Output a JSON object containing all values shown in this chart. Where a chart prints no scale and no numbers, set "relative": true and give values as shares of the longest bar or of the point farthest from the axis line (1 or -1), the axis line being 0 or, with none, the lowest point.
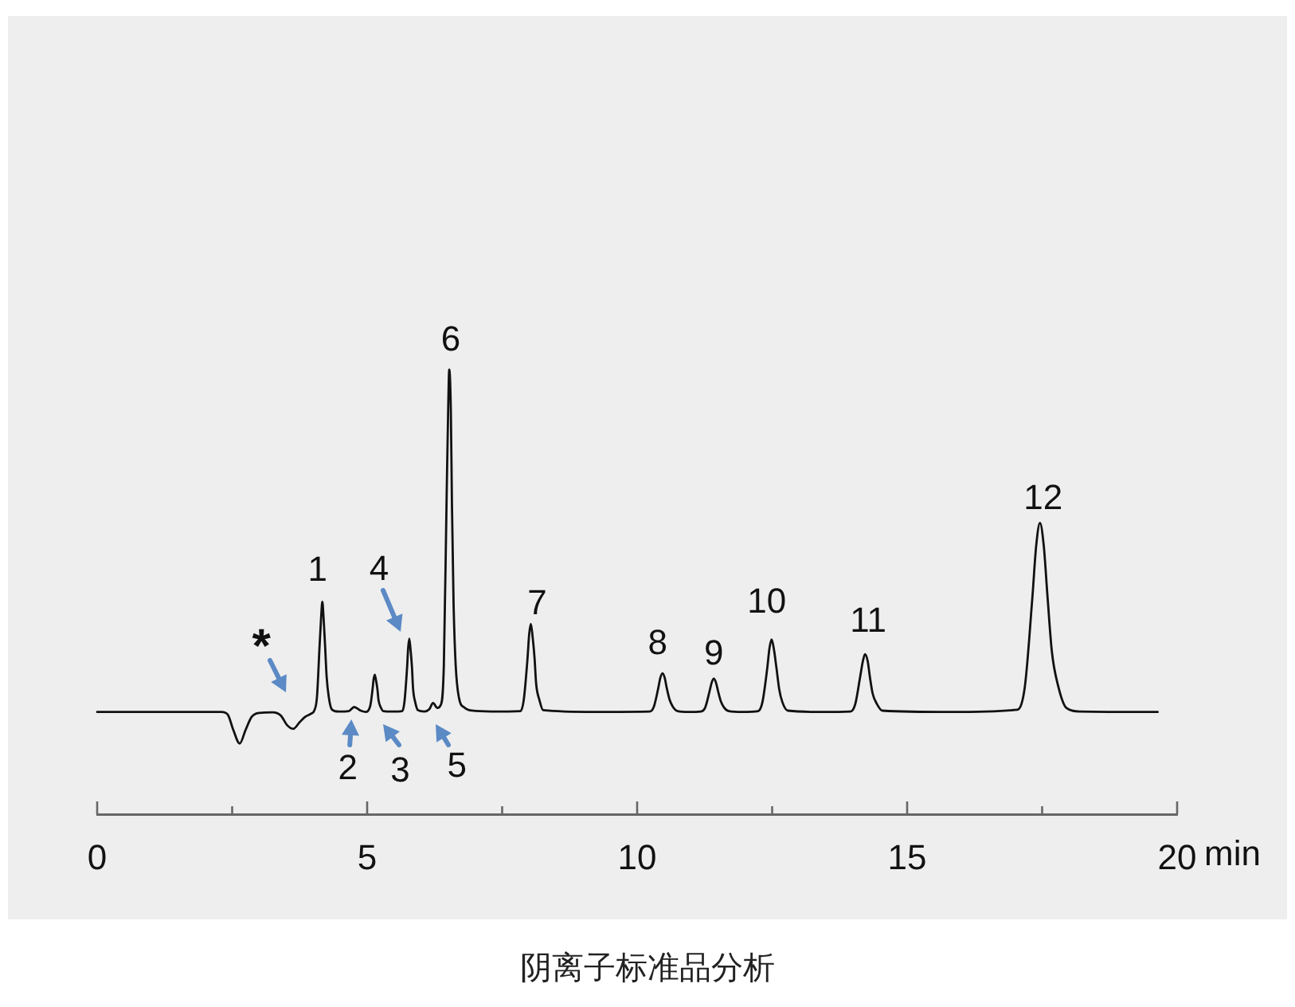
{
  "chart_data": {
    "type": "line",
    "title": "阴离子标准品分析",
    "xlabel": "min",
    "relative": true,
    "color": "#111111",
    "x": [
      0,
      2.3,
      2.42,
      2.52,
      2.64,
      2.75,
      2.86,
      3.0,
      3.25,
      3.4,
      3.52,
      3.63,
      3.75,
      3.85,
      3.96,
      4.02,
      4.07,
      4.12,
      4.15,
      4.17,
      4.19,
      4.22,
      4.25,
      4.29,
      4.35,
      4.47,
      4.66,
      4.76,
      4.88,
      4.98,
      5.02,
      5.06,
      5.1,
      5.12,
      5.14,
      5.16,
      5.19,
      5.21,
      5.25,
      5.3,
      5.47,
      5.65,
      5.69,
      5.74,
      5.76,
      5.78,
      5.8,
      5.83,
      5.85,
      5.89,
      5.94,
      6.06,
      6.15,
      6.22,
      6.3,
      6.36,
      6.42,
      6.47,
      6.5,
      6.52,
      6.55,
      6.57,
      6.6,
      6.64,
      6.7,
      6.8,
      6.94,
      7.3,
      7.84,
      7.9,
      7.97,
      8.0,
      8.03,
      8.06,
      8.1,
      8.13,
      8.19,
      8.26,
      9.2,
      10.23,
      10.31,
      10.39,
      10.43,
      10.47,
      10.51,
      10.55,
      10.6,
      10.66,
      10.75,
      10.95,
      11.18,
      11.26,
      11.34,
      11.38,
      11.42,
      11.46,
      11.5,
      11.55,
      11.61,
      11.7,
      11.95,
      12.24,
      12.32,
      12.41,
      12.45,
      12.49,
      12.53,
      12.58,
      12.63,
      12.69,
      12.79,
      13.4,
      13.95,
      14.04,
      14.13,
      14.18,
      14.22,
      14.27,
      14.31,
      14.36,
      14.44,
      14.54,
      15.8,
      17.04,
      17.18,
      17.32,
      17.39,
      17.46,
      17.53,
      17.6,
      17.68,
      17.8,
      17.95,
      18.2,
      19.64
    ],
    "values": [
      0.23,
      0.23,
      0.224,
      0.19,
      0.159,
      0.19,
      0.219,
      0.228,
      0.229,
      0.222,
      0.2,
      0.192,
      0.207,
      0.219,
      0.226,
      0.233,
      0.263,
      0.381,
      0.448,
      0.478,
      0.448,
      0.381,
      0.309,
      0.263,
      0.235,
      0.231,
      0.232,
      0.241,
      0.233,
      0.23,
      0.233,
      0.245,
      0.281,
      0.304,
      0.314,
      0.304,
      0.281,
      0.257,
      0.241,
      0.232,
      0.231,
      0.232,
      0.252,
      0.331,
      0.375,
      0.395,
      0.375,
      0.331,
      0.283,
      0.252,
      0.234,
      0.231,
      0.236,
      0.25,
      0.239,
      0.245,
      0.334,
      0.7,
      0.908,
      1,
      0.908,
      0.7,
      0.476,
      0.334,
      0.262,
      0.24,
      0.233,
      0.231,
      0.232,
      0.257,
      0.351,
      0.404,
      0.428,
      0.404,
      0.351,
      0.293,
      0.257,
      0.234,
      0.23,
      0.231,
      0.242,
      0.283,
      0.307,
      0.317,
      0.307,
      0.283,
      0.258,
      0.242,
      0.232,
      0.23,
      0.231,
      0.24,
      0.276,
      0.296,
      0.305,
      0.296,
      0.276,
      0.254,
      0.24,
      0.232,
      0.23,
      0.232,
      0.252,
      0.329,
      0.373,
      0.393,
      0.373,
      0.329,
      0.282,
      0.252,
      0.233,
      0.23,
      0.231,
      0.248,
      0.309,
      0.344,
      0.36,
      0.344,
      0.309,
      0.272,
      0.248,
      0.233,
      0.23,
      0.235,
      0.287,
      0.489,
      0.604,
      0.655,
      0.604,
      0.489,
      0.366,
      0.287,
      0.239,
      0.231,
      0.23
    ],
    "xlim": [
      0,
      20
    ],
    "xticks": [
      0,
      {
        "value": 2.5,
        "label": null
      },
      5,
      {
        "value": 7.5,
        "label": null
      },
      10,
      {
        "value": 12.5,
        "label": null
      },
      15,
      {
        "value": 17.5,
        "label": null
      },
      20
    ],
    "annotations": [
      {
        "text": "*",
        "x": 3.63,
        "y": 0.192
      },
      {
        "text": "1",
        "x": 4.17,
        "y": 0.478
      },
      {
        "text": "2",
        "x": 4.76,
        "y": 0.241
      },
      {
        "text": "3",
        "x": 5.14,
        "y": 0.314
      },
      {
        "text": "4",
        "x": 5.78,
        "y": 0.395
      },
      {
        "text": "5",
        "x": 6.22,
        "y": 0.25
      },
      {
        "text": "6",
        "x": 6.52,
        "y": 1
      },
      {
        "text": "7",
        "x": 8.03,
        "y": 0.428
      },
      {
        "text": "8",
        "x": 10.47,
        "y": 0.317
      },
      {
        "text": "9",
        "x": 11.42,
        "y": 0.305
      },
      {
        "text": "10",
        "x": 12.49,
        "y": 0.393
      },
      {
        "text": "11",
        "x": 14.22,
        "y": 0.36
      },
      {
        "text": "12",
        "x": 17.46,
        "y": 0.655
      }
    ]
  }
}
